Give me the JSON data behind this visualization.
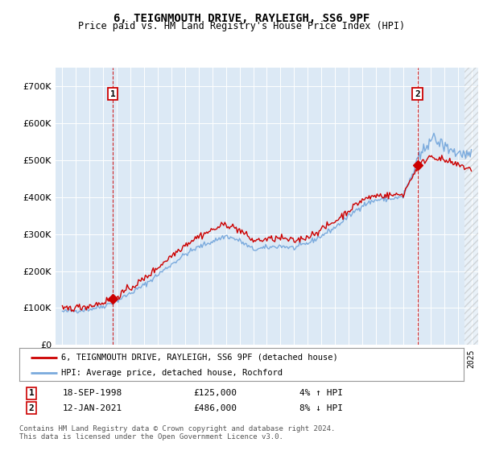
{
  "title": "6, TEIGNMOUTH DRIVE, RAYLEIGH, SS6 9PF",
  "subtitle": "Price paid vs. HM Land Registry's House Price Index (HPI)",
  "legend_line1": "6, TEIGNMOUTH DRIVE, RAYLEIGH, SS6 9PF (detached house)",
  "legend_line2": "HPI: Average price, detached house, Rochford",
  "annotation1_date": "18-SEP-1998",
  "annotation1_price": 125000,
  "annotation1_hpi_text": "4% ↑ HPI",
  "annotation2_date": "12-JAN-2021",
  "annotation2_price": 486000,
  "annotation2_hpi_text": "8% ↓ HPI",
  "footer": "Contains HM Land Registry data © Crown copyright and database right 2024.\nThis data is licensed under the Open Government Licence v3.0.",
  "bg_color": "#dce9f5",
  "line_color_price": "#cc0000",
  "line_color_hpi": "#7aaadd",
  "vline_color": "#cc0000",
  "ylim_min": 0,
  "ylim_max": 750000,
  "sale1_x": 1998.708,
  "sale2_x": 2021.042,
  "hpi_key_years": [
    1995,
    1996,
    1997,
    1998,
    1999,
    2000,
    2001,
    2002,
    2003,
    2004,
    2005,
    2006,
    2007,
    2008,
    2009,
    2010,
    2011,
    2012,
    2013,
    2014,
    2015,
    2016,
    2017,
    2018,
    2019,
    2020,
    2021,
    2022,
    2023,
    2024,
    2025
  ],
  "hpi_key_vals": [
    90000,
    93000,
    97000,
    105000,
    120000,
    140000,
    162000,
    190000,
    218000,
    245000,
    265000,
    280000,
    295000,
    282000,
    258000,
    263000,
    268000,
    262000,
    275000,
    295000,
    318000,
    348000,
    378000,
    392000,
    395000,
    400000,
    490000,
    560000,
    540000,
    520000,
    510000
  ]
}
